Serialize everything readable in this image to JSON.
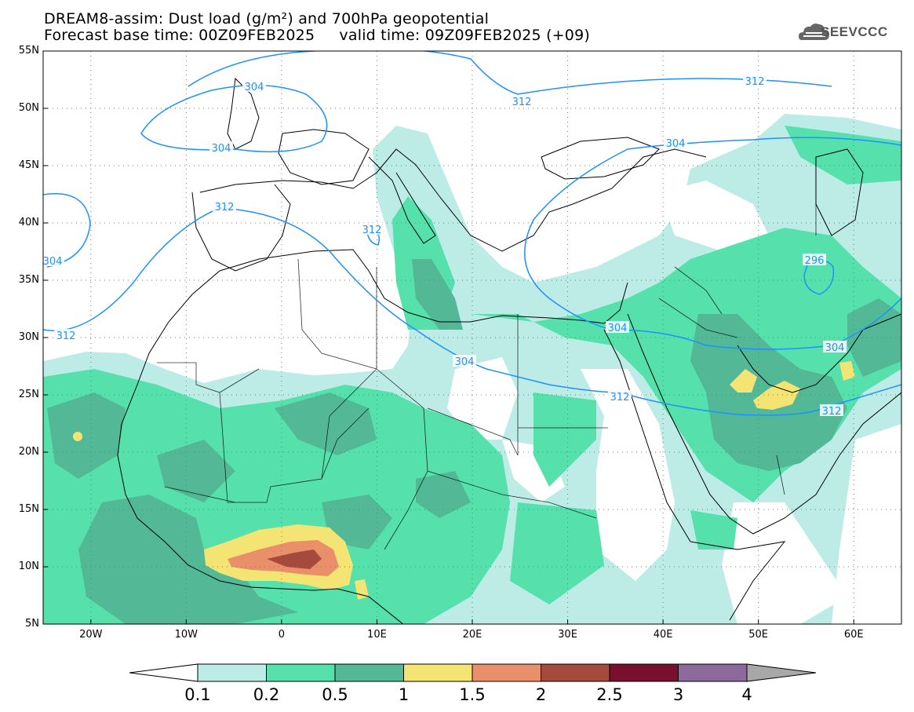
{
  "header": {
    "line1": "DREAM8-assim: Dust load (g/m²) and 700hPa geopotential",
    "line2": "Forecast base time: 00Z09FEB2025     valid time: 09Z09FEB2025 (+09)"
  },
  "logo": {
    "text": "SEEVCCC",
    "icon": "cloud-icon"
  },
  "axes": {
    "lat_labels": [
      "55N",
      "50N",
      "45N",
      "40N",
      "35N",
      "30N",
      "25N",
      "20N",
      "15N",
      "10N",
      "5N"
    ],
    "lon_labels": [
      "20W",
      "10W",
      "0",
      "10E",
      "20E",
      "30E",
      "40E",
      "50E",
      "60E"
    ],
    "lat_range": [
      5,
      55
    ],
    "lon_range": [
      -25,
      65
    ],
    "grid": "dotted"
  },
  "contours": {
    "color": "#1e90ff",
    "labels": [
      "304",
      "304",
      "304",
      "312",
      "312",
      "312",
      "304",
      "296",
      "304",
      "312",
      "312",
      "312",
      "304",
      "312",
      "304"
    ]
  },
  "colorbar": {
    "labels": [
      "0.1",
      "0.2",
      "0.5",
      "1",
      "1.5",
      "2",
      "2.5",
      "3",
      "4"
    ],
    "colors": [
      "#bdece6",
      "#55e0ac",
      "#52b896",
      "#f4e473",
      "#e9906a",
      "#a64a3e",
      "#7a1030",
      "#8e6a9c"
    ],
    "over_color": "#a8a8a8",
    "under_color": "#ffffff"
  }
}
